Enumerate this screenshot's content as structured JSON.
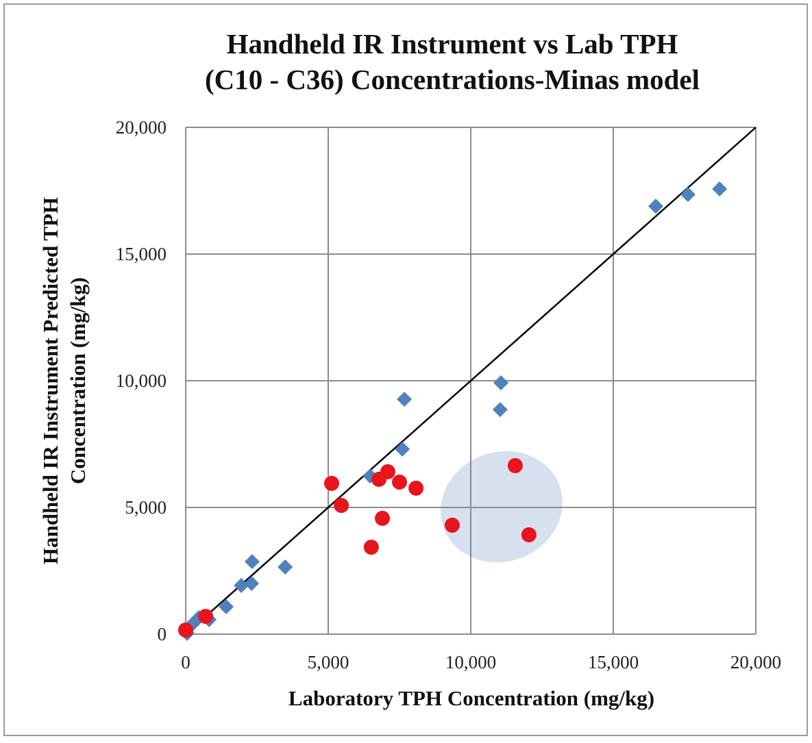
{
  "chart_data": {
    "type": "scatter",
    "title": [
      "Handheld IR Instrument vs Lab TPH",
      "(C10 - C36) Concentrations-Minas model"
    ],
    "xlabel": "Laboratory TPH Concentration (mg/kg)",
    "ylabel": [
      "Handheld IR Instrument  Predicted TPH",
      "Concentration (mg/kg)"
    ],
    "xlim": [
      0,
      20000
    ],
    "ylim": [
      0,
      20000
    ],
    "xticks": [
      0,
      {
        "value": 5000,
        "label": "5,000"
      },
      {
        "value": 10000,
        "label": "10,000"
      },
      {
        "value": 15000,
        "label": "15,000"
      },
      {
        "value": 20000,
        "label": "20,000"
      }
    ],
    "yticks": [
      0,
      {
        "value": 5000,
        "label": "5,000"
      },
      {
        "value": 10000,
        "label": "10,000"
      },
      {
        "value": 15000,
        "label": "15,000"
      },
      {
        "value": 20000,
        "label": "20,000"
      }
    ],
    "grid": true,
    "series": [
      {
        "marker": "diamond",
        "color": "#4f81bd",
        "x": [
          50,
          220,
          460,
          820,
          1420,
          1950,
          2310,
          2330,
          3490,
          6470,
          7600,
          7670,
          11060,
          11030,
          16490,
          17620,
          18730
        ],
        "values": [
          30,
          380,
          650,
          570,
          1080,
          1920,
          2000,
          2860,
          2650,
          6240,
          7300,
          9270,
          9920,
          8860,
          16890,
          17350,
          17570
        ]
      },
      {
        "marker": "circle",
        "color": "#e8141e",
        "x": [
          0,
          700,
          5120,
          5460,
          6510,
          6780,
          6900,
          7090,
          7500,
          8080,
          9350,
          11560,
          12040
        ],
        "values": [
          160,
          700,
          5950,
          5080,
          3430,
          6110,
          4570,
          6410,
          6000,
          5760,
          4300,
          6650,
          3920
        ]
      }
    ],
    "reference_line": {
      "color": "#000000",
      "x": [
        0,
        20000
      ],
      "values": [
        0,
        20000
      ]
    }
  }
}
